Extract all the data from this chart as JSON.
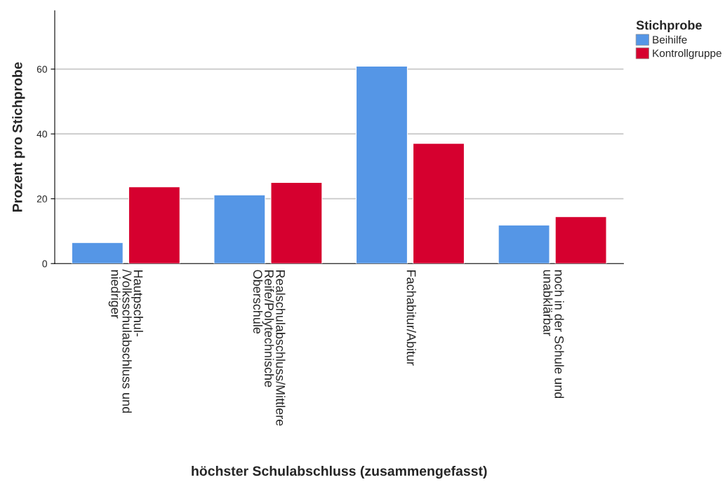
{
  "chart_data": {
    "type": "bar",
    "categories": [
      "Hautpschul-\n/Volksschulabschluss und\nniedriger",
      "Realschulabschluss/Mittlere\nReife/Polytechnische\nOberschule",
      "Fachabitur/Abitur",
      "noch in der Schule und\nunabklärbar"
    ],
    "series": [
      {
        "name": "Beihilfe",
        "color": "#5596e6",
        "values": [
          6.5,
          21.2,
          60.9,
          11.9
        ]
      },
      {
        "name": "Kontrollgruppe",
        "color": "#d6002f",
        "values": [
          23.7,
          25.0,
          37.1,
          14.5
        ]
      }
    ],
    "xlabel": "höchster Schulabschluss (zusammengefasst)",
    "ylabel": "Prozent pro Stichprobe",
    "legend_title": "Stichprobe",
    "ylim": [
      0,
      78
    ],
    "yticks": [
      0,
      20,
      40,
      60
    ],
    "grid": "y",
    "legend": "top right"
  }
}
